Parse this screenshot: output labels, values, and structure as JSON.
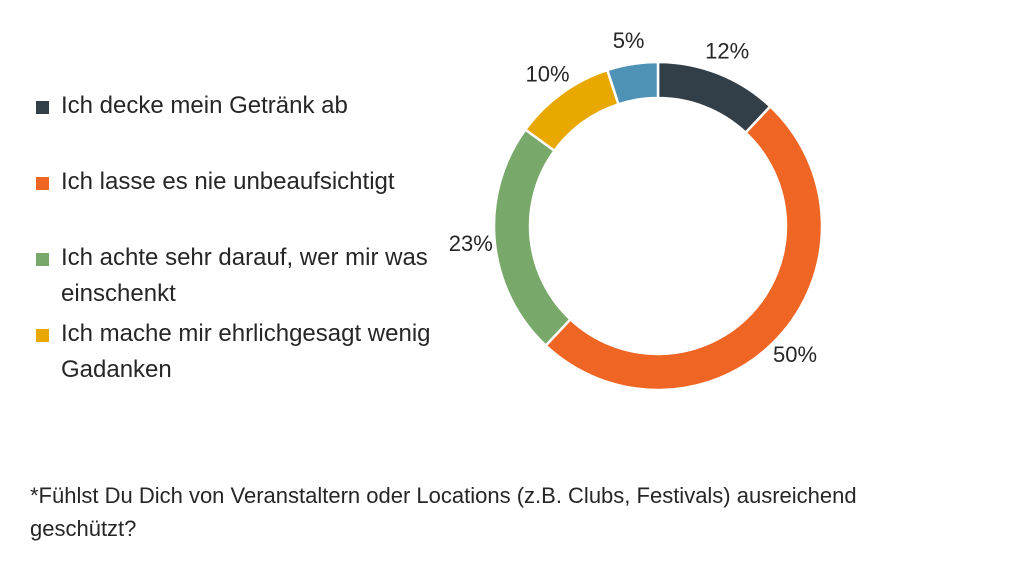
{
  "chart_data": {
    "type": "pie",
    "variant": "donut",
    "title": "",
    "start_angle_deg": 0,
    "direction": "clockwise",
    "slices": [
      {
        "name": "Ich decke mein Getränk ab",
        "value": 12,
        "label": "12%",
        "color": "#333f48",
        "in_legend": true
      },
      {
        "name": "Ich lasse es nie unbeaufsichtigt",
        "value": 50,
        "label": "50%",
        "color": "#ee6524",
        "in_legend": true
      },
      {
        "name": "Ich achte sehr darauf, wer mir was einschenkt",
        "value": 23,
        "label": "23%",
        "color": "#78a86a",
        "in_legend": true
      },
      {
        "name": "Ich mache mir ehrlichgesagt wenig Gadanken",
        "value": 10,
        "label": "10%",
        "color": "#e8a800",
        "in_legend": true
      },
      {
        "name": "",
        "value": 5,
        "label": "5%",
        "color": "#4e93b5",
        "in_legend": false
      }
    ],
    "legend_position": "left"
  },
  "footnote": "*Fühlst Du Dich von Veranstaltern oder Locations (z.B. Clubs, Festivals) ausreichend geschützt?"
}
